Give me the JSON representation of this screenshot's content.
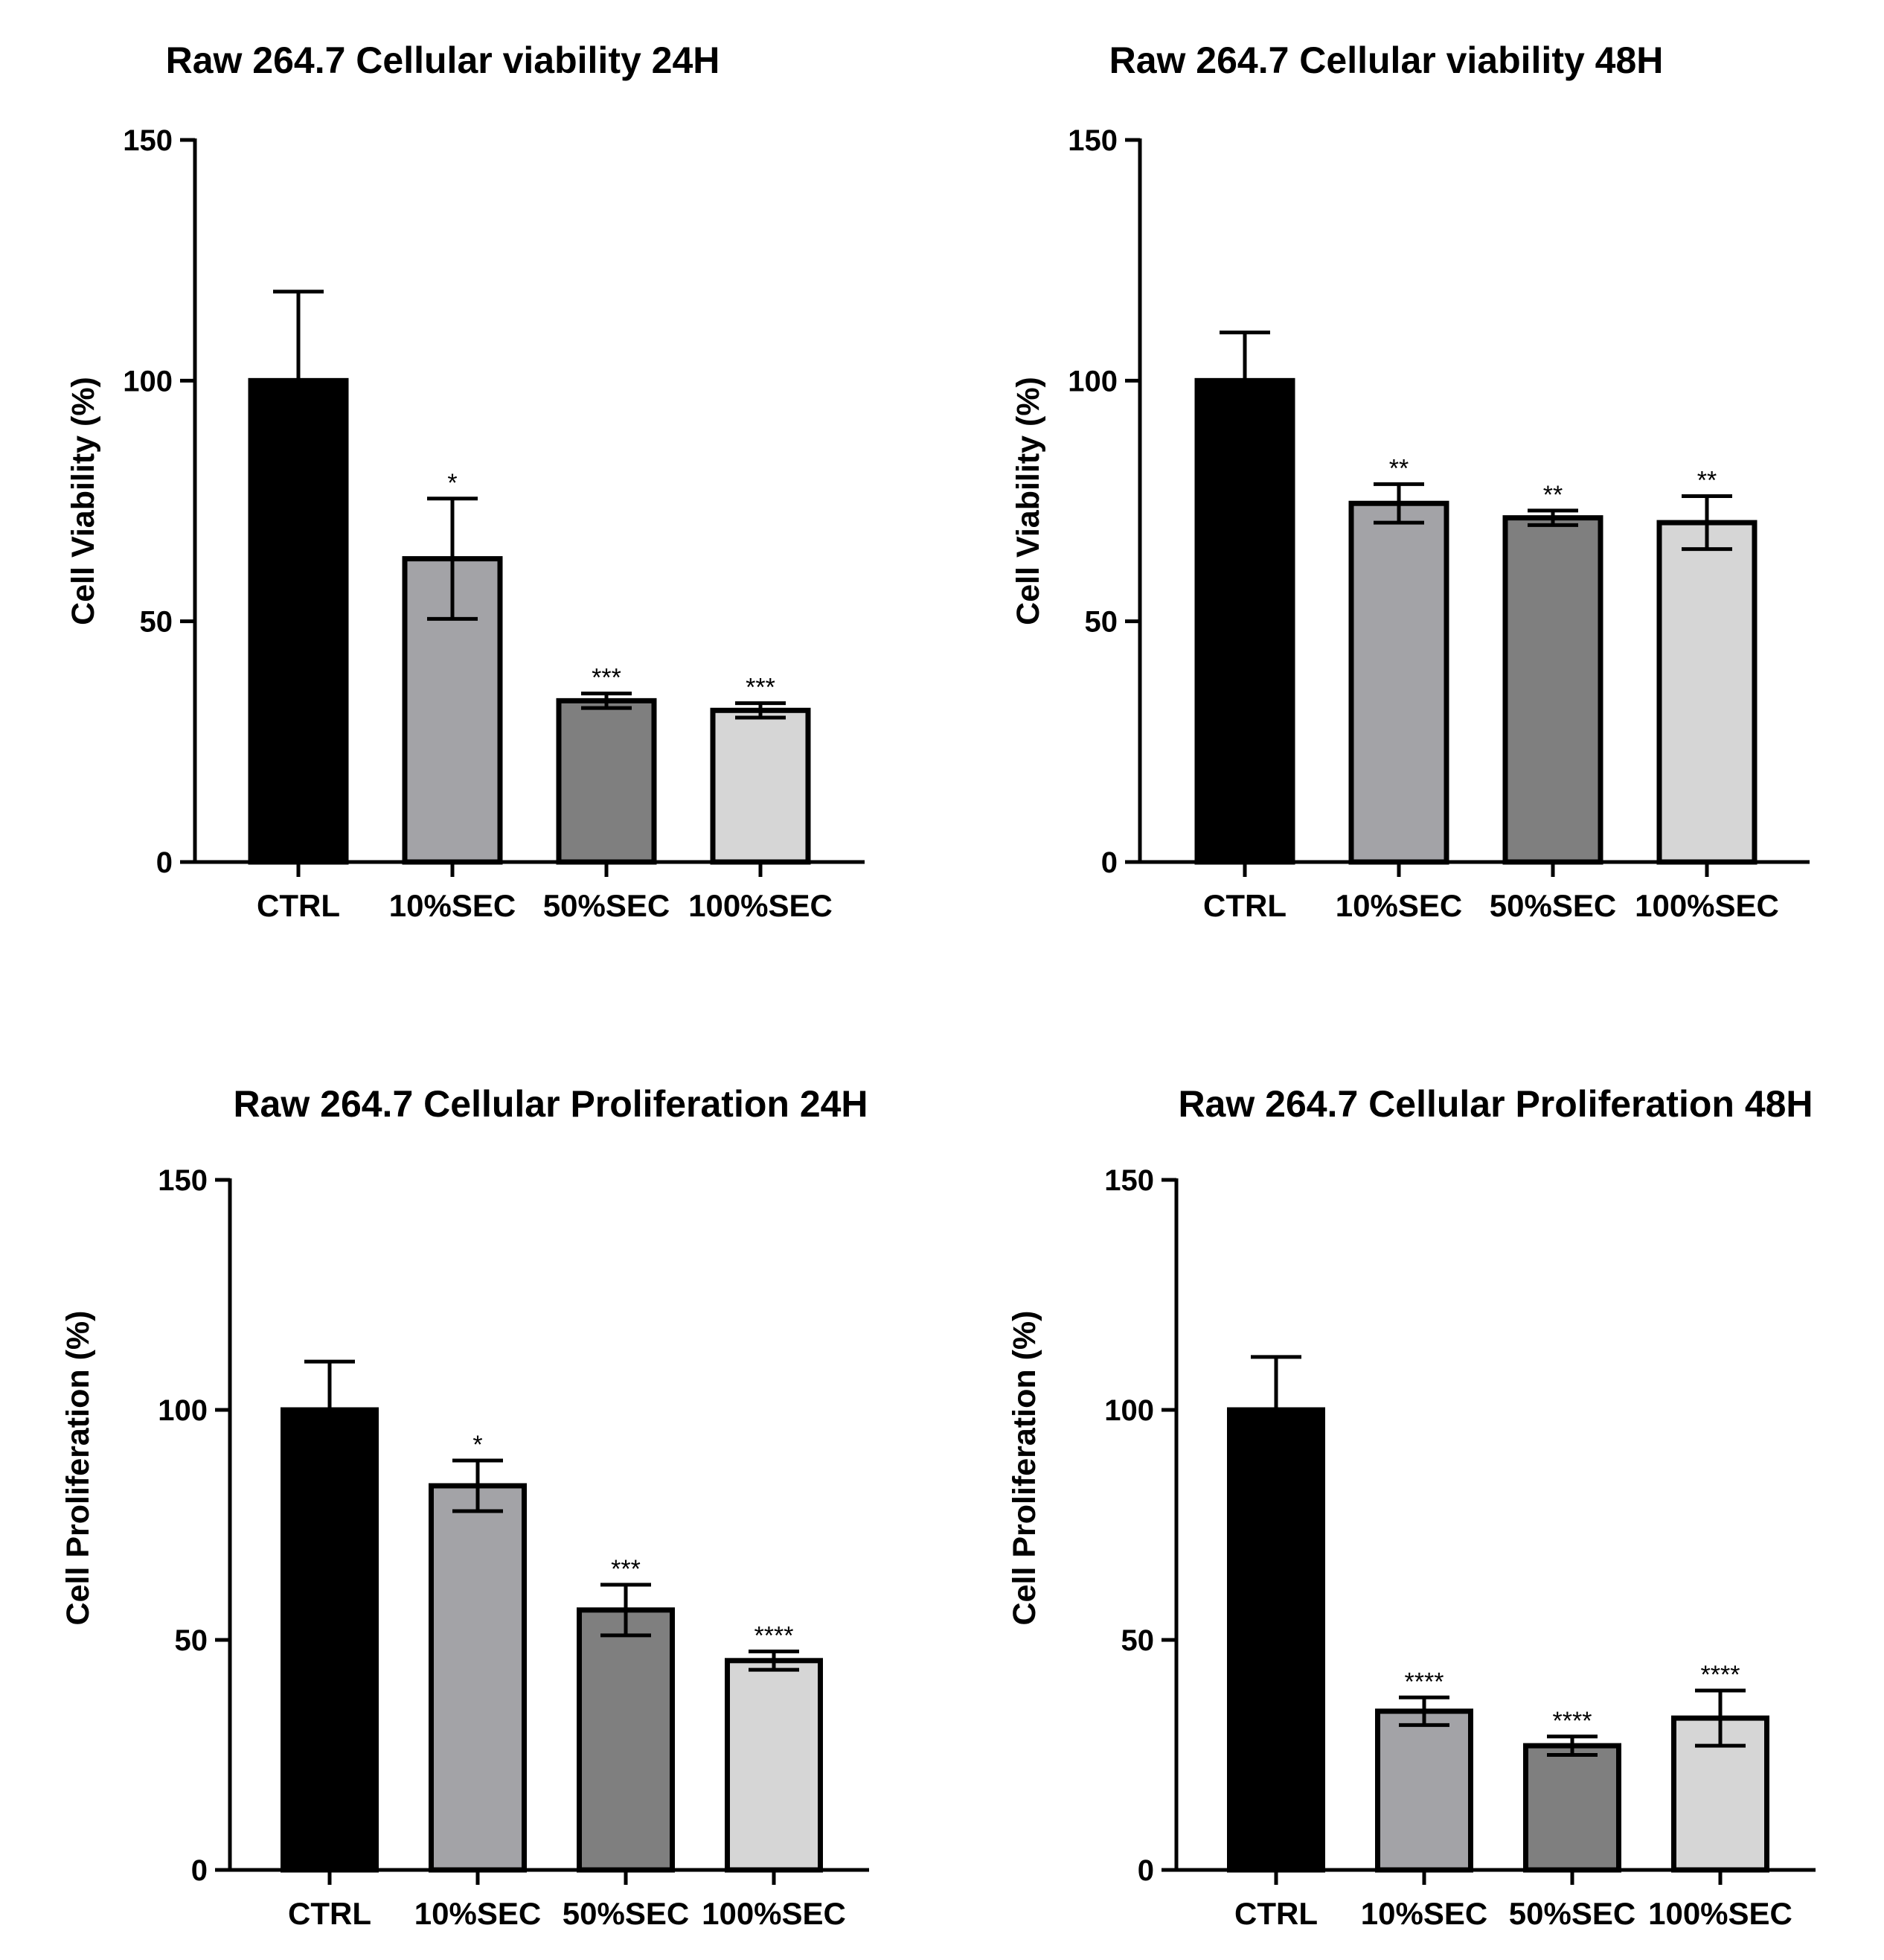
{
  "chart_data": [
    {
      "type": "bar",
      "title": "Raw 264.7 Cellular viability 24H",
      "xlabel": "",
      "ylabel": "Cell Viability (%)",
      "ylim": [
        0,
        150
      ],
      "yticks": [
        "0",
        "50",
        "100",
        "150"
      ],
      "grid": false,
      "categories": [
        "CTRL",
        "10%SEC",
        "50%SEC",
        "100%SEC"
      ],
      "values": [
        100,
        63,
        33.5,
        31.5
      ],
      "errors": [
        18.5,
        12.5,
        1.5,
        1.5
      ],
      "significance": [
        "",
        "*",
        "***",
        "***"
      ],
      "bar_colors": [
        "#000000",
        "#a3a3a7",
        "#7f7f7f",
        "#d6d6d6"
      ]
    },
    {
      "type": "bar",
      "title": "Raw 264.7 Cellular viability 48H",
      "xlabel": "",
      "ylabel": "Cell Viability (%)",
      "ylim": [
        0,
        150
      ],
      "yticks": [
        "0",
        "50",
        "100",
        "150"
      ],
      "grid": false,
      "categories": [
        "CTRL",
        "10%SEC",
        "50%SEC",
        "100%SEC"
      ],
      "values": [
        100,
        74.5,
        71.5,
        70.5
      ],
      "errors": [
        10,
        4,
        1.5,
        5.5
      ],
      "significance": [
        "",
        "**",
        "**",
        "**"
      ],
      "bar_colors": [
        "#000000",
        "#a3a3a7",
        "#7f7f7f",
        "#d6d6d6"
      ]
    },
    {
      "type": "bar",
      "title": "Raw 264.7 Cellular Proliferation 24H",
      "xlabel": "",
      "ylabel": "Cell Proliferation (%)",
      "ylim": [
        0,
        150
      ],
      "yticks": [
        "0",
        "50",
        "100",
        "150"
      ],
      "grid": false,
      "categories": [
        "CTRL",
        "10%SEC",
        "50%SEC",
        "100%SEC"
      ],
      "values": [
        100,
        83.5,
        56.5,
        45.5
      ],
      "errors": [
        10.5,
        5.5,
        5.5,
        2
      ],
      "significance": [
        "",
        "*",
        "***",
        "****"
      ],
      "bar_colors": [
        "#000000",
        "#a3a3a7",
        "#7f7f7f",
        "#d6d6d6"
      ]
    },
    {
      "type": "bar",
      "title": "Raw 264.7 Cellular Proliferation 48H",
      "xlabel": "",
      "ylabel": "Cell Proliferation (%)",
      "ylim": [
        0,
        150
      ],
      "yticks": [
        "0",
        "50",
        "100",
        "150"
      ],
      "grid": false,
      "categories": [
        "CTRL",
        "10%SEC",
        "50%SEC",
        "100%SEC"
      ],
      "values": [
        100,
        34.5,
        27,
        33
      ],
      "errors": [
        11.5,
        3,
        2,
        6
      ],
      "significance": [
        "",
        "****",
        "****",
        "****"
      ],
      "bar_colors": [
        "#000000",
        "#a3a3a7",
        "#7f7f7f",
        "#d6d6d6"
      ]
    }
  ]
}
